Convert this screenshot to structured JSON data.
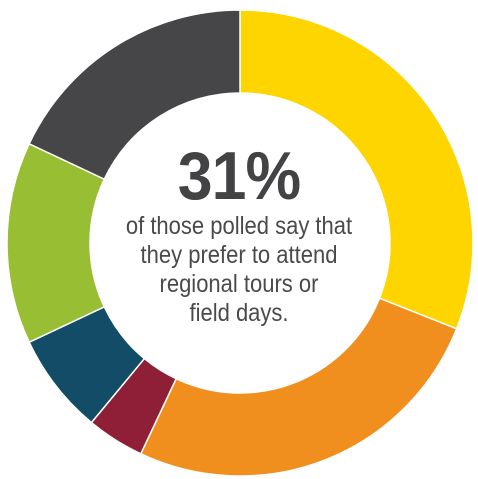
{
  "chart_data": {
    "type": "pie",
    "variant": "donut",
    "slices": [
      {
        "value": 31,
        "color": "#FFD500"
      },
      {
        "value": 26,
        "color": "#F18F1E"
      },
      {
        "value": 4,
        "color": "#8E1F36"
      },
      {
        "value": 7,
        "color": "#124C67"
      },
      {
        "value": 14,
        "color": "#98BF33"
      },
      {
        "value": 18,
        "color": "#464648"
      }
    ],
    "start_angle_deg": 0,
    "direction": "clockwise",
    "separator_color": "#ffffff",
    "title": "",
    "center_value": "31%",
    "center_caption": [
      "of those polled say that",
      "they prefer to attend",
      "regional tours or",
      "field days."
    ]
  }
}
